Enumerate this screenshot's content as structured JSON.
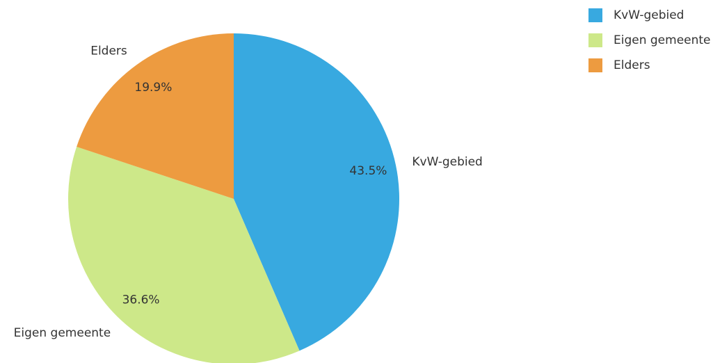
{
  "chart_data": {
    "type": "pie",
    "categories": [
      "KvW-gebied",
      "Eigen gemeente",
      "Elders"
    ],
    "values": [
      43.5,
      36.6,
      19.9
    ],
    "value_labels": [
      "43.5%",
      "36.6%",
      "19.9%"
    ],
    "colors": [
      "#38a9e0",
      "#cde889",
      "#ed9b40"
    ],
    "legend": "top-right"
  }
}
